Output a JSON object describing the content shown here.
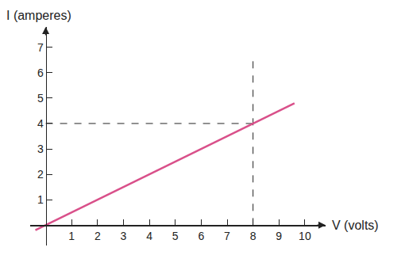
{
  "chart_data": {
    "type": "line",
    "x_label": "V (volts)",
    "y_label": "I (amperes)",
    "x": [
      -0.4,
      9.6
    ],
    "values": [
      -0.2,
      4.8
    ],
    "color": "#d9508a",
    "line_style": "solid",
    "reference_lines": [
      {
        "x": [
          0,
          8
        ],
        "y": [
          4,
          4
        ]
      },
      {
        "x": [
          8,
          8
        ],
        "y": [
          0,
          6.6
        ]
      }
    ],
    "xlim": [
      -0.6,
      10.8
    ],
    "xticks": [
      1,
      2,
      3,
      4,
      5,
      6,
      7,
      8,
      9,
      10
    ],
    "ylim": [
      -0.8,
      7.8
    ],
    "yticks": [
      1,
      2,
      3,
      4,
      5,
      6,
      7
    ],
    "grid": false
  }
}
